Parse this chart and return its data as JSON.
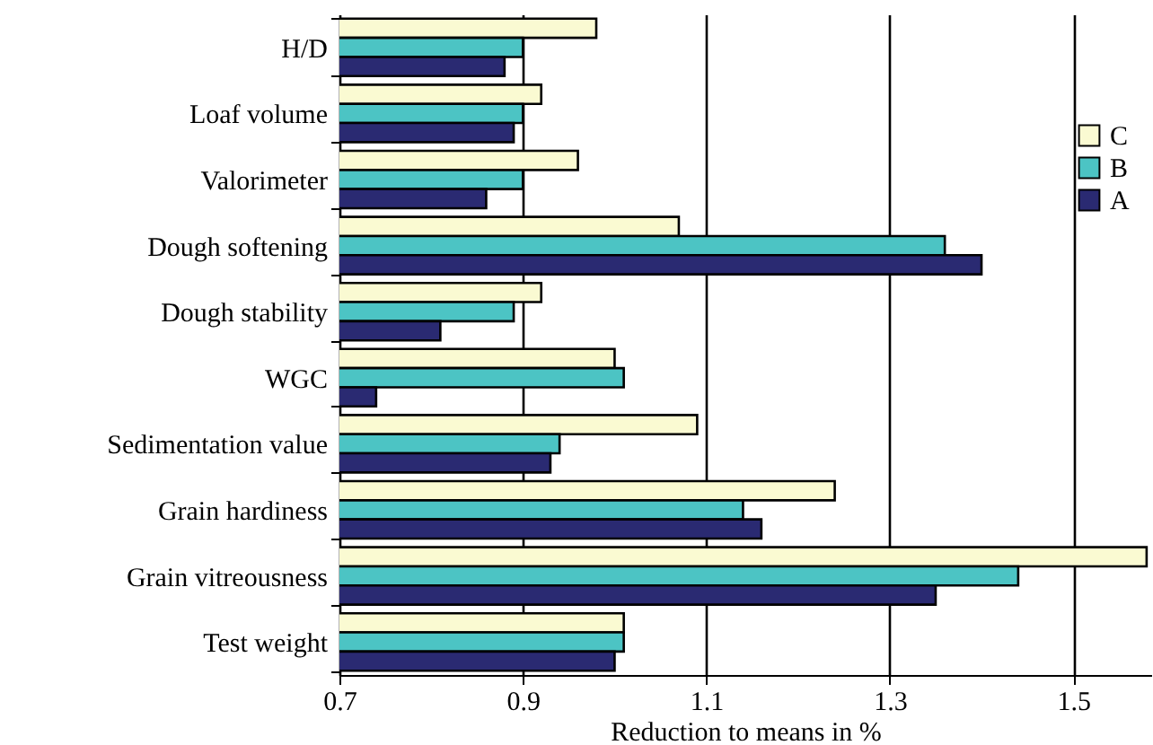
{
  "chart_data": {
    "type": "bar",
    "orientation": "horizontal",
    "xlabel": "Reduction to means in %",
    "categories": [
      "H/D",
      "Loaf volume",
      "Valorimeter",
      "Dough softening",
      "Dough stability",
      "WGC",
      "Sedimentation value",
      "Grain hardiness",
      "Grain vitreousness",
      "Test weight"
    ],
    "series": [
      {
        "name": "C",
        "color": "#fafad2",
        "values": [
          0.98,
          0.92,
          0.96,
          1.07,
          0.92,
          1.0,
          1.09,
          1.24,
          1.58,
          1.01
        ]
      },
      {
        "name": "B",
        "color": "#4cc4c4",
        "values": [
          0.9,
          0.9,
          0.9,
          1.36,
          0.89,
          1.01,
          0.94,
          1.14,
          1.44,
          1.01
        ]
      },
      {
        "name": "A",
        "color": "#2a2a72",
        "values": [
          0.88,
          0.89,
          0.86,
          1.4,
          0.81,
          0.74,
          0.93,
          1.16,
          1.35,
          1.0
        ]
      }
    ],
    "xlim": [
      0.7,
      1.585
    ],
    "xticks": [
      0.7,
      0.9,
      1.1,
      1.3,
      1.5
    ],
    "grid": "x",
    "legend": "right"
  }
}
